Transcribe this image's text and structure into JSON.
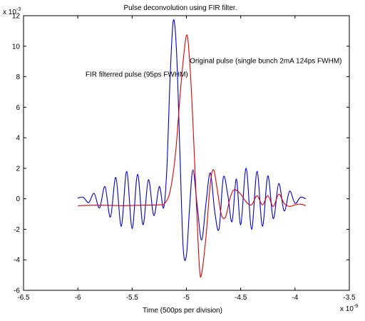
{
  "chart_data": {
    "type": "line",
    "title": "Pulse deconvolution using FIR filter.",
    "xlabel": "Time (500ps per division)",
    "ylabel": "",
    "x_exponent_label": "x 10",
    "x_exponent_power": "-9",
    "y_exponent_label": "x 10",
    "y_exponent_power": "-3",
    "xlim": [
      -6.5,
      -3.5
    ],
    "ylim": [
      -6,
      12
    ],
    "x_ticks": [
      -6.5,
      -6,
      -5.5,
      -5,
      -4.5,
      -4,
      -3.5
    ],
    "x_tick_labels": [
      "-6.5",
      "-6",
      "-5.5",
      "-5",
      "-4.5",
      "-4",
      "-3.5"
    ],
    "y_ticks": [
      -6,
      -4,
      -2,
      0,
      2,
      4,
      6,
      8,
      10,
      12
    ],
    "y_tick_labels": [
      "-6",
      "-4",
      "-2",
      "0",
      "2",
      "4",
      "6",
      "8",
      "10",
      "12"
    ],
    "grid": false,
    "series": [
      {
        "name": "FIR filterred pulse (95ps FWHM)",
        "color": "#0000cc",
        "points": [
          [
            -6.0,
            0.05
          ],
          [
            -5.95,
            0.1
          ],
          [
            -5.9,
            -0.25
          ],
          [
            -5.85,
            0.35
          ],
          [
            -5.8,
            -0.6
          ],
          [
            -5.75,
            0.8
          ],
          [
            -5.7,
            -1.2
          ],
          [
            -5.65,
            1.4
          ],
          [
            -5.6,
            -1.8
          ],
          [
            -5.55,
            1.8
          ],
          [
            -5.5,
            -1.95
          ],
          [
            -5.45,
            1.6
          ],
          [
            -5.4,
            -1.7
          ],
          [
            -5.35,
            1.25
          ],
          [
            -5.3,
            -1.1
          ],
          [
            -5.25,
            0.8
          ],
          [
            -5.21,
            -0.6
          ],
          [
            -5.18,
            2.0
          ],
          [
            -5.15,
            8.0
          ],
          [
            -5.12,
            11.7
          ],
          [
            -5.09,
            9.5
          ],
          [
            -5.06,
            3.0
          ],
          [
            -5.03,
            -3.2
          ],
          [
            -5.0,
            -3.7
          ],
          [
            -4.97,
            -0.5
          ],
          [
            -4.94,
            1.9
          ],
          [
            -4.9,
            -0.5
          ],
          [
            -4.86,
            -2.7
          ],
          [
            -4.82,
            -0.3
          ],
          [
            -4.78,
            1.7
          ],
          [
            -4.74,
            -0.8
          ],
          [
            -4.7,
            -2.0
          ],
          [
            -4.66,
            1.4
          ],
          [
            -4.62,
            0.3
          ],
          [
            -4.58,
            -1.5
          ],
          [
            -4.54,
            1.3
          ],
          [
            -4.5,
            -1.7
          ],
          [
            -4.45,
            2.0
          ],
          [
            -4.4,
            -2.0
          ],
          [
            -4.35,
            1.8
          ],
          [
            -4.3,
            -1.8
          ],
          [
            -4.25,
            1.5
          ],
          [
            -4.2,
            -1.3
          ],
          [
            -4.15,
            1.0
          ],
          [
            -4.1,
            -0.8
          ],
          [
            -4.05,
            0.5
          ],
          [
            -4.0,
            -0.3
          ],
          [
            -3.95,
            0.1
          ],
          [
            -3.9,
            0.0
          ]
        ]
      },
      {
        "name": "Original pulse (single bunch 2mA 124ps FWHM)",
        "color": "#dd0000",
        "points": [
          [
            -6.0,
            -0.45
          ],
          [
            -5.8,
            -0.42
          ],
          [
            -5.6,
            -0.45
          ],
          [
            -5.4,
            -0.42
          ],
          [
            -5.25,
            -0.4
          ],
          [
            -5.2,
            -0.3
          ],
          [
            -5.15,
            0.5
          ],
          [
            -5.1,
            3.0
          ],
          [
            -5.05,
            7.5
          ],
          [
            -5.0,
            10.7
          ],
          [
            -4.97,
            9.0
          ],
          [
            -4.94,
            5.0
          ],
          [
            -4.91,
            0.0
          ],
          [
            -4.88,
            -4.5
          ],
          [
            -4.86,
            -4.9
          ],
          [
            -4.82,
            -2.5
          ],
          [
            -4.78,
            1.0
          ],
          [
            -4.75,
            1.9
          ],
          [
            -4.72,
            0.8
          ],
          [
            -4.68,
            -1.0
          ],
          [
            -4.64,
            -1.2
          ],
          [
            -4.6,
            0.0
          ],
          [
            -4.56,
            0.6
          ],
          [
            -4.5,
            0.3
          ],
          [
            -4.45,
            -0.2
          ],
          [
            -4.4,
            -0.4
          ],
          [
            -4.35,
            0.2
          ],
          [
            -4.3,
            -0.4
          ],
          [
            -4.25,
            0.2
          ],
          [
            -4.2,
            -0.5
          ],
          [
            -4.15,
            0.3
          ],
          [
            -4.1,
            -0.3
          ],
          [
            -4.05,
            -0.5
          ],
          [
            -4.0,
            -0.4
          ],
          [
            -3.95,
            -0.35
          ],
          [
            -3.9,
            -0.45
          ]
        ]
      }
    ],
    "annotations": [
      {
        "text": "Original pulse (single bunch 2mA 124ps FWHM)",
        "x": -4.97,
        "y": 8.9
      },
      {
        "text": "FIR filterred pulse (95ps FWHM)",
        "x": -5.93,
        "y": 8.0
      }
    ]
  }
}
